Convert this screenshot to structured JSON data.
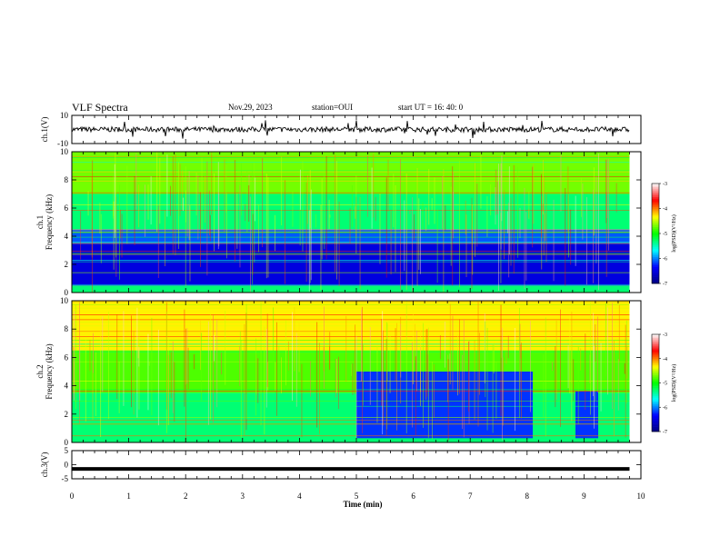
{
  "header": {
    "title": "VLF Spectra",
    "date": "Nov.29, 2023",
    "station": "station=OUI",
    "start": "start UT =  16: 40: 0"
  },
  "colors": {
    "background": "#ffffff",
    "waveform": "#000000",
    "colormap": [
      "#000080",
      "#0000ff",
      "#00ffff",
      "#00ff00",
      "#ffff00",
      "#ff0000",
      "#ffffff"
    ]
  },
  "chart_data": [
    {
      "type": "line",
      "panel": "channel-1-waveform",
      "ylabel": "ch.1(V)",
      "ylim": [
        -10,
        10
      ],
      "yticks": [
        "10",
        "-10"
      ],
      "xlim": [
        0,
        10
      ],
      "x_extent_min": [
        0,
        9.8
      ],
      "series": [
        {
          "values_description_mean": 0,
          "amplitude_range": [
            -3,
            3
          ]
        }
      ]
    },
    {
      "type": "heatmap",
      "panel": "channel-1-spectrogram",
      "ylabel_lines": [
        "ch.1",
        "Frequency (kHz)"
      ],
      "ylim": [
        0,
        10
      ],
      "yticks": [
        "0",
        "2",
        "4",
        "6",
        "8",
        "10"
      ],
      "xlim": [
        0,
        10
      ],
      "x_extent_min": [
        0,
        9.8
      ],
      "z_range_log_psd": [
        -7,
        -3
      ],
      "colorbar_ticks": [
        "-3",
        "-4",
        "-5",
        "-6",
        "-7"
      ],
      "colorbar_label": "log(PSD)(V²/Hz)",
      "band_levels_khz": [
        {
          "f": [
            0,
            0.5
          ],
          "z": -5.3
        },
        {
          "f": [
            0.5,
            3.5
          ],
          "z": -6.5
        },
        {
          "f": [
            3.5,
            4.5
          ],
          "z": -6.1
        },
        {
          "f": [
            4.5,
            7.0
          ],
          "z": -5.3
        },
        {
          "f": [
            7.0,
            10.0
          ],
          "z": -4.7
        }
      ]
    },
    {
      "type": "heatmap",
      "panel": "channel-2-spectrogram",
      "ylabel_lines": [
        "ch.2",
        "Frequency (kHz)"
      ],
      "ylim": [
        0,
        10
      ],
      "yticks": [
        "0",
        "2",
        "4",
        "6",
        "8",
        "10"
      ],
      "xlim": [
        0,
        10
      ],
      "x_extent_min": [
        0,
        9.8
      ],
      "z_range_log_psd": [
        -7,
        -3
      ],
      "colorbar_ticks": [
        "-3",
        "-4",
        "-5",
        "-6",
        "-7"
      ],
      "colorbar_label": "log(PSD)(V²/Hz)",
      "band_levels_khz": [
        {
          "f": [
            0,
            3.5
          ],
          "z": -5.3
        },
        {
          "f": [
            3.5,
            6.5
          ],
          "z": -4.8
        },
        {
          "f": [
            6.5,
            10.0
          ],
          "z": -4.3
        }
      ],
      "quiet_intervals_min": [
        {
          "t": [
            5.0,
            8.1
          ],
          "f": [
            0.3,
            5.0
          ],
          "z": -6.2
        },
        {
          "t": [
            8.85,
            9.25
          ],
          "f": [
            0.3,
            3.6
          ],
          "z": -6.2
        }
      ]
    },
    {
      "type": "line",
      "panel": "channel-3-waveform",
      "ylabel": "ch.3(V)",
      "ylim": [
        -5,
        5
      ],
      "yticks": [
        "5",
        "0",
        "-5"
      ],
      "xlim": [
        0,
        10
      ],
      "x_extent_min": [
        0,
        9.8
      ],
      "series": [
        {
          "level": -1.5
        }
      ]
    }
  ],
  "x_axis": {
    "label": "Time (min)",
    "ticks": [
      "0",
      "1",
      "2",
      "3",
      "4",
      "5",
      "6",
      "7",
      "8",
      "9",
      "10"
    ]
  }
}
